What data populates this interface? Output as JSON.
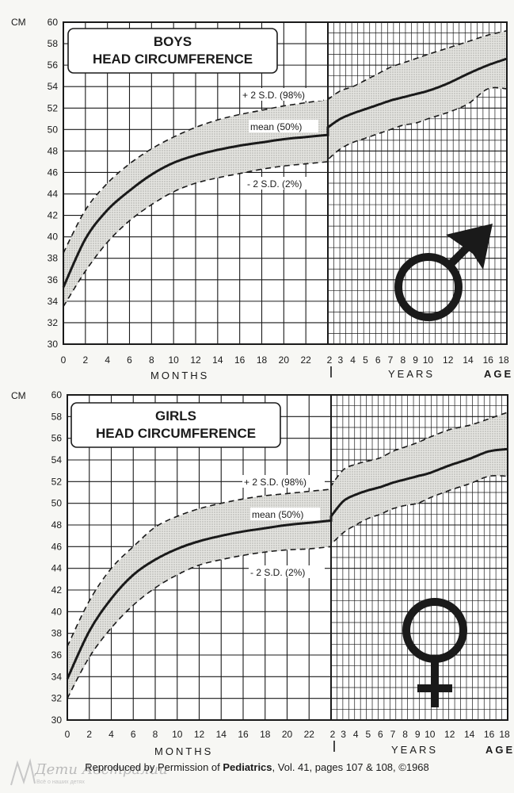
{
  "chart_data": [
    {
      "type": "line",
      "title_line1": "BOYS",
      "title_line2": "HEAD CIRCUMFERENCE",
      "y_unit": "CM",
      "ylim": [
        30,
        60
      ],
      "y_ticks": [
        30,
        32,
        34,
        36,
        38,
        40,
        42,
        44,
        46,
        48,
        50,
        52,
        54,
        56,
        58,
        60
      ],
      "x_months_ticks": [
        0,
        2,
        4,
        6,
        8,
        10,
        12,
        14,
        16,
        18,
        20,
        22
      ],
      "x_years_ticks": [
        "2",
        "3",
        "4",
        "5",
        "6",
        "7",
        "8",
        "9",
        "10",
        "12",
        "14",
        "16",
        "18"
      ],
      "xlabel_months": "MONTHS",
      "xlabel_years": "YEARS",
      "xlabel_age": "AGE",
      "symbol": "male-symbol",
      "label_upper": "+ 2 S.D. (98%)",
      "label_mean": "mean (50%)",
      "label_lower": "- 2 S.D. (2%)",
      "months_series": {
        "x": [
          0,
          2,
          4,
          6,
          8,
          10,
          12,
          14,
          16,
          18,
          20,
          22,
          24
        ],
        "upper": [
          38.5,
          42.5,
          45.0,
          46.8,
          48.2,
          49.3,
          50.2,
          50.9,
          51.4,
          51.8,
          52.2,
          52.5,
          52.8
        ],
        "mean": [
          35.3,
          39.8,
          42.5,
          44.3,
          45.8,
          46.9,
          47.6,
          48.1,
          48.5,
          48.8,
          49.1,
          49.3,
          49.5
        ],
        "lower": [
          33.5,
          36.8,
          39.5,
          41.5,
          43.0,
          44.2,
          45.0,
          45.5,
          45.9,
          46.3,
          46.6,
          46.8,
          47.0
        ]
      },
      "years_series": {
        "x": [
          2,
          3,
          4,
          5,
          6,
          7,
          8,
          9,
          10,
          12,
          14,
          16,
          18
        ],
        "upper": [
          52.8,
          53.6,
          54.0,
          54.6,
          55.2,
          55.8,
          56.2,
          56.6,
          57.0,
          57.6,
          58.2,
          58.8,
          59.2
        ],
        "mean": [
          50.2,
          51.0,
          51.5,
          51.9,
          52.3,
          52.7,
          53.0,
          53.3,
          53.6,
          54.3,
          55.2,
          56.0,
          56.6
        ],
        "lower": [
          47.2,
          48.2,
          48.8,
          49.2,
          49.6,
          50.0,
          50.4,
          50.6,
          51.0,
          51.6,
          52.4,
          53.8,
          53.8
        ]
      }
    },
    {
      "type": "line",
      "title_line1": "GIRLS",
      "title_line2": "HEAD CIRCUMFERENCE",
      "y_unit": "CM",
      "ylim": [
        30,
        60
      ],
      "y_ticks": [
        30,
        32,
        34,
        36,
        38,
        40,
        42,
        44,
        46,
        48,
        50,
        52,
        54,
        56,
        58,
        60
      ],
      "x_months_ticks": [
        0,
        2,
        4,
        6,
        8,
        10,
        12,
        14,
        16,
        18,
        20,
        22
      ],
      "x_years_ticks": [
        "2",
        "3",
        "4",
        "5",
        "6",
        "7",
        "8",
        "9",
        "10",
        "12",
        "14",
        "16",
        "18"
      ],
      "xlabel_months": "MONTHS",
      "xlabel_years": "YEARS",
      "xlabel_age": "AGE",
      "symbol": "female-symbol",
      "label_upper": "+ 2 S.D. (98%)",
      "label_mean": "mean (50%)",
      "label_lower": "- 2 S.D. (2%)",
      "months_series": {
        "x": [
          0,
          2,
          4,
          6,
          8,
          10,
          12,
          14,
          16,
          18,
          20,
          22,
          24
        ],
        "upper": [
          36.8,
          41.0,
          44.0,
          46.0,
          47.8,
          48.8,
          49.5,
          50.0,
          50.4,
          50.7,
          50.9,
          51.1,
          51.3
        ],
        "mean": [
          33.8,
          38.2,
          41.2,
          43.4,
          44.8,
          45.8,
          46.5,
          47.0,
          47.4,
          47.7,
          48.0,
          48.2,
          48.4
        ],
        "lower": [
          32.0,
          35.8,
          38.5,
          40.6,
          42.2,
          43.4,
          44.3,
          44.8,
          45.2,
          45.5,
          45.7,
          45.8,
          46.0
        ]
      },
      "years_series": {
        "x": [
          2,
          3,
          4,
          5,
          6,
          7,
          8,
          9,
          10,
          12,
          14,
          16,
          18
        ],
        "upper": [
          51.6,
          53.1,
          53.6,
          53.9,
          54.2,
          54.8,
          55.2,
          55.6,
          56.1,
          56.8,
          57.2,
          57.8,
          58.4
        ],
        "mean": [
          48.8,
          50.2,
          50.8,
          51.2,
          51.5,
          51.9,
          52.2,
          52.5,
          52.8,
          53.5,
          54.1,
          54.8,
          55.0
        ],
        "lower": [
          46.2,
          47.3,
          48.0,
          48.6,
          49.0,
          49.5,
          49.8,
          50.0,
          50.5,
          51.2,
          51.8,
          52.5,
          52.5
        ]
      }
    }
  ],
  "footer": {
    "prefix": "Reproduced by Permission of ",
    "journal": "Pediatrics",
    "suffix": ", Vol. 41, pages 107 & 108, ©1968"
  },
  "watermark": {
    "text": "Дети Австралии",
    "sub": "Всё о наших детях"
  }
}
